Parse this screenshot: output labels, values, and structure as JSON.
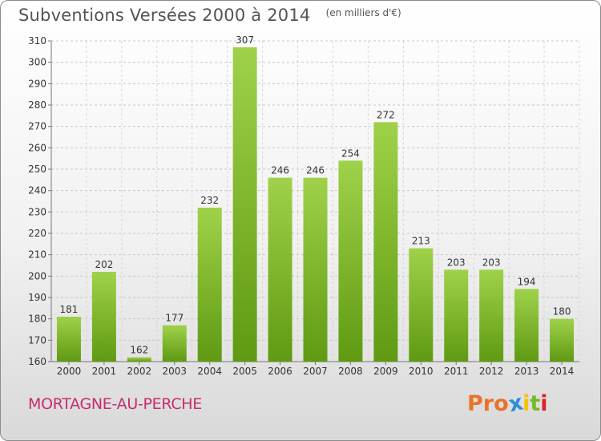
{
  "header": {
    "title": "Subventions Versées 2000 à 2014",
    "subtitle": "(en milliers d'€)"
  },
  "footer": {
    "town": "MORTAGNE-AU-PERCHE",
    "logo_letters": [
      "P",
      "r",
      "o",
      "x",
      "i",
      "t",
      "i"
    ]
  },
  "colors": {
    "bar_light": "#9fd24a",
    "bar_dark": "#5f9a12",
    "town": "#c72c6e",
    "logo": [
      "#e8732a",
      "#e8732a",
      "#e8732a",
      "#2f8fd8",
      "#f2c400",
      "#77b82a",
      "#d8232a"
    ]
  },
  "chart_data": {
    "type": "bar",
    "title": "Subventions Versées 2000 à 2014",
    "subtitle": "(en milliers d'€)",
    "xlabel": "",
    "ylabel": "",
    "categories": [
      "2000",
      "2001",
      "2002",
      "2003",
      "2004",
      "2005",
      "2006",
      "2007",
      "2008",
      "2009",
      "2010",
      "2011",
      "2012",
      "2013",
      "2014"
    ],
    "values": [
      181,
      202,
      162,
      177,
      232,
      307,
      246,
      246,
      254,
      272,
      213,
      203,
      203,
      194,
      180
    ],
    "ylim": [
      160,
      310
    ],
    "yticks": [
      160,
      170,
      180,
      190,
      200,
      210,
      220,
      230,
      240,
      250,
      260,
      270,
      280,
      290,
      300,
      310
    ],
    "grid": true,
    "data_labels": true
  }
}
